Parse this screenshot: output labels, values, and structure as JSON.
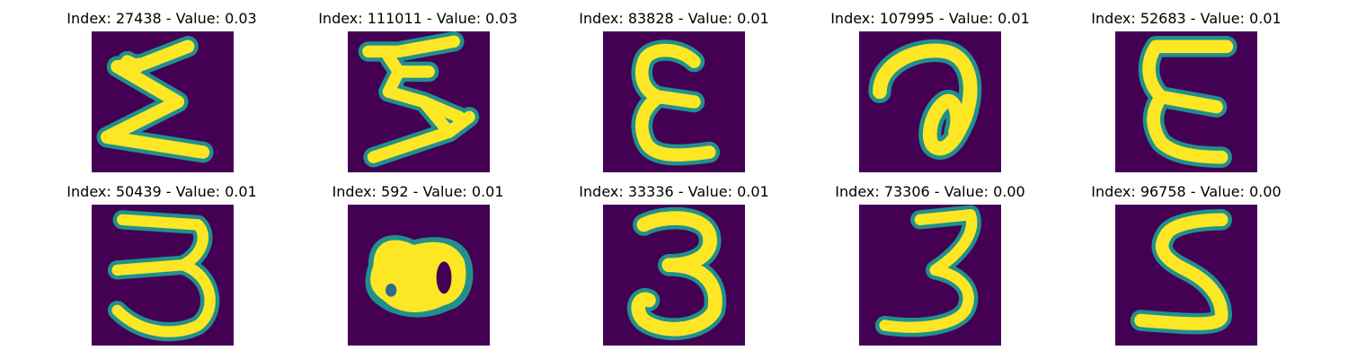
{
  "colors": {
    "background": "#440154",
    "stroke_outer": "#21908d",
    "stroke_mid": "#5ec962",
    "stroke_inner": "#fde725"
  },
  "panels": [
    {
      "title": "Index: 27438 - Value: 0.03",
      "glyph": "sigma"
    },
    {
      "title": "Index: 111011 - Value: 0.03",
      "glyph": "sigma-rotated"
    },
    {
      "title": "Index: 83828 - Value: 0.01",
      "glyph": "epsilon"
    },
    {
      "title": "Index: 107995 - Value: 0.01",
      "glyph": "loop"
    },
    {
      "title": "Index: 52683 - Value: 0.01",
      "glyph": "epsilon-wide"
    },
    {
      "title": "Index: 50439 - Value: 0.01",
      "glyph": "three-open"
    },
    {
      "title": "Index: 592 - Value: 0.01",
      "glyph": "blob"
    },
    {
      "title": "Index: 33336 - Value: 0.01",
      "glyph": "three"
    },
    {
      "title": "Index: 73306 - Value: 0.00",
      "glyph": "three-slanted"
    },
    {
      "title": "Index: 96758 - Value: 0.00",
      "glyph": "five"
    }
  ]
}
